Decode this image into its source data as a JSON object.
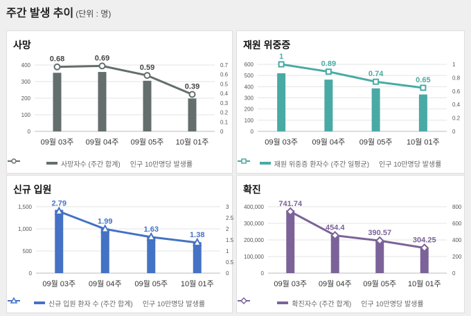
{
  "header": {
    "title": "주간 발생 추이",
    "unit": "(단위 : 명)"
  },
  "chart_data": [
    {
      "id": "deaths",
      "type": "bar+line",
      "title": "사망",
      "color": "#636e6d",
      "marker": "circle",
      "categories": [
        "09월 03주",
        "09월 04주",
        "09월 05주",
        "10월 01주"
      ],
      "left_axis": {
        "min": 0,
        "max": 400,
        "step": 100,
        "ticks": [
          "0",
          "100",
          "200",
          "300",
          "400"
        ]
      },
      "right_axis": {
        "min": 0,
        "max": 0.7,
        "step": 0.1,
        "ticks": [
          "0",
          "0.1",
          "0.2",
          "0.3",
          "0.4",
          "0.5",
          "0.6",
          "0.7"
        ]
      },
      "series": [
        {
          "name": "사망자수 (주간 합계)",
          "kind": "bar",
          "axis": "left",
          "values": [
            353,
            358,
            305,
            198
          ]
        },
        {
          "name": "인구 10만명당 발생률",
          "kind": "line",
          "axis": "right",
          "values": [
            0.68,
            0.69,
            0.59,
            0.39
          ],
          "labels": [
            "0.68",
            "0.69",
            "0.59",
            "0.39"
          ]
        }
      ]
    },
    {
      "id": "severe",
      "type": "bar+line",
      "title": "재원 위중증",
      "color": "#49aaa4",
      "marker": "square",
      "categories": [
        "09월 03주",
        "09월 04주",
        "09월 05주",
        "10월 01주"
      ],
      "left_axis": {
        "min": 0,
        "max": 600,
        "step": 100,
        "ticks": [
          "0",
          "100",
          "200",
          "300",
          "400",
          "500",
          "600"
        ]
      },
      "right_axis": {
        "min": 0,
        "max": 1,
        "step": 0.2,
        "ticks": [
          "0",
          "0.2",
          "0.4",
          "0.6",
          "0.8",
          "1"
        ]
      },
      "series": [
        {
          "name": "재원 위중증 환자수 (주간 일평균)",
          "kind": "bar",
          "axis": "left",
          "values": [
            520,
            463,
            385,
            330
          ]
        },
        {
          "name": "인구 10만명당 발생률",
          "kind": "line",
          "axis": "right",
          "values": [
            1,
            0.89,
            0.74,
            0.65
          ],
          "labels": [
            "1",
            "0.89",
            "0.74",
            "0.65"
          ]
        }
      ]
    },
    {
      "id": "admissions",
      "type": "bar+line",
      "title": "신규 입원",
      "color": "#4472c4",
      "marker": "triangle",
      "categories": [
        "09월 03주",
        "09월 04주",
        "09월 05주",
        "10월 01주"
      ],
      "left_axis": {
        "min": 0,
        "max": 1500,
        "step": 500,
        "ticks": [
          "0",
          "500",
          "1,000",
          "1,500"
        ]
      },
      "right_axis": {
        "min": 0,
        "max": 3,
        "step": 0.5,
        "ticks": [
          "0",
          "0.5",
          "1",
          "1.5",
          "2",
          "2.5",
          "3"
        ]
      },
      "series": [
        {
          "name": "신규 입원 환자 수 (주간 합계)",
          "kind": "bar",
          "axis": "left",
          "values": [
            1430,
            1010,
            830,
            700
          ]
        },
        {
          "name": "인구 10만명당 발생률",
          "kind": "line",
          "axis": "right",
          "values": [
            2.79,
            1.99,
            1.63,
            1.38
          ],
          "labels": [
            "2.79",
            "1.99",
            "1.63",
            "1.38"
          ]
        }
      ]
    },
    {
      "id": "confirmed",
      "type": "bar+line",
      "title": "확진",
      "color": "#7b6399",
      "marker": "diamond",
      "categories": [
        "09월 03주",
        "09월 04주",
        "09월 05주",
        "10월 01주"
      ],
      "left_axis": {
        "min": 0,
        "max": 400000,
        "step": 100000,
        "ticks": [
          "0",
          "100,000",
          "200,000",
          "300,000",
          "400,000"
        ]
      },
      "right_axis": {
        "min": 0,
        "max": 800,
        "step": 200,
        "ticks": [
          "0",
          "200",
          "400",
          "600",
          "800"
        ]
      },
      "series": [
        {
          "name": "확진자수 (주간 합계)",
          "kind": "bar",
          "axis": "left",
          "values": [
            378000,
            230000,
            198000,
            155000
          ]
        },
        {
          "name": "인구 10만명당 발생률",
          "kind": "line",
          "axis": "right",
          "values": [
            741.74,
            454.4,
            390.57,
            304.25
          ],
          "labels": [
            "741.74",
            "454.4",
            "390.57",
            "304.25"
          ]
        }
      ]
    }
  ]
}
